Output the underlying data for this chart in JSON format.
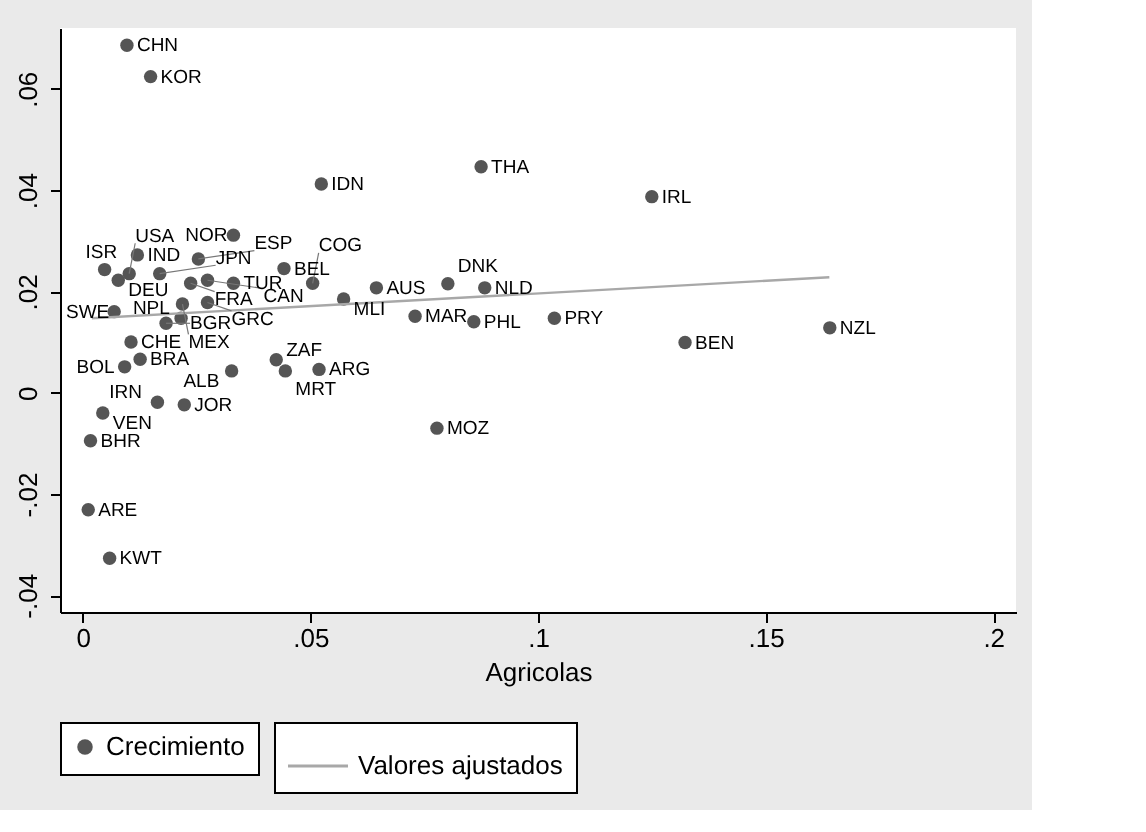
{
  "chart_data": {
    "type": "scatter",
    "xlabel": "Agricolas",
    "xlim": [
      -0.005,
      0.205
    ],
    "ylim": [
      -0.0433,
      0.072
    ],
    "xticks": [
      0,
      {
        "value": 0.05,
        "label": ".05"
      },
      {
        "value": 0.1,
        "label": ".1"
      },
      {
        "value": 0.15,
        "label": ".15"
      },
      {
        "value": 0.2,
        "label": ".2"
      }
    ],
    "yticks": [
      {
        "value": -0.04,
        "label": "-.04"
      },
      {
        "value": -0.02,
        "label": "-.02"
      },
      0,
      {
        "value": 0.02,
        "label": ".02"
      },
      {
        "value": 0.04,
        "label": ".04"
      },
      {
        "value": 0.06,
        "label": ".06"
      }
    ],
    "grid": false,
    "legend": "bottom",
    "series": [
      {
        "name": "Crecimiento",
        "color": "#555555",
        "marker": "circle",
        "x": [
          0.0097,
          0.0149,
          0.0524,
          0.0875,
          0.125,
          0.0331,
          0.0254,
          0.0048,
          0.012,
          0.0078,
          0.0102,
          0.0169,
          0.0237,
          0.0274,
          0.0331,
          0.0442,
          0.0505,
          0.0573,
          0.0645,
          0.0802,
          0.0883,
          0.0219,
          0.0274,
          0.0069,
          0.0183,
          0.0216,
          0.073,
          0.0859,
          0.1036,
          0.1323,
          0.1641,
          0.0106,
          0.0126,
          0.0092,
          0.0327,
          0.0425,
          0.0445,
          0.0519,
          0.0164,
          0.0223,
          0.0044,
          0.0017,
          0.0012,
          0.0059,
          0.0778
        ],
        "values": [
          0.0686,
          0.0624,
          0.0412,
          0.0446,
          0.0387,
          0.0311,
          0.0264,
          0.0243,
          0.0272,
          0.0222,
          0.0235,
          0.0235,
          0.0216,
          0.0222,
          0.0216,
          0.0245,
          0.0216,
          0.0185,
          0.0207,
          0.0215,
          0.0207,
          0.0175,
          0.0178,
          0.016,
          0.0137,
          0.0147,
          0.0151,
          0.014,
          0.0147,
          0.0099,
          0.0128,
          0.01,
          0.0066,
          0.0051,
          0.0043,
          0.0065,
          0.0043,
          0.0046,
          -0.0019,
          -0.0024,
          -0.004,
          -0.0095,
          -0.0231,
          -0.0327,
          -0.007
        ]
      },
      {
        "name": "Valores ajustados",
        "color": "#a8a8a8",
        "type": "line",
        "x": [
          0.002,
          0.164
        ],
        "values": [
          0.0147,
          0.0228
        ]
      }
    ],
    "annotations": [
      {
        "text": "CHN",
        "x": 0.0097,
        "y": 0.0686
      },
      {
        "text": "KOR",
        "x": 0.0149,
        "y": 0.0624
      },
      {
        "text": "IDN",
        "x": 0.0524,
        "y": 0.0412
      },
      {
        "text": "THA",
        "x": 0.0875,
        "y": 0.0446
      },
      {
        "text": "IRL",
        "x": 0.125,
        "y": 0.0387
      },
      {
        "text": "NOR",
        "x": 0.0331,
        "y": 0.0311
      },
      {
        "text": "ESP",
        "x": 0.0254,
        "y": 0.0264
      },
      {
        "text": "ISR",
        "x": 0.0048,
        "y": 0.0243
      },
      {
        "text": "IND",
        "x": 0.012,
        "y": 0.0272
      },
      {
        "text": "DEU",
        "x": 0.0078,
        "y": 0.0222
      },
      {
        "text": "USA",
        "x": 0.0102,
        "y": 0.0235
      },
      {
        "text": "JPN",
        "x": 0.0169,
        "y": 0.0235
      },
      {
        "text": "FRA",
        "x": 0.0237,
        "y": 0.0216
      },
      {
        "text": "CAN",
        "x": 0.0274,
        "y": 0.0222
      },
      {
        "text": "TUR",
        "x": 0.0331,
        "y": 0.0216
      },
      {
        "text": "BEL",
        "x": 0.0442,
        "y": 0.0245
      },
      {
        "text": "COG",
        "x": 0.0505,
        "y": 0.0216
      },
      {
        "text": "MLI",
        "x": 0.0573,
        "y": 0.0185
      },
      {
        "text": "AUS",
        "x": 0.0645,
        "y": 0.0207
      },
      {
        "text": "DNK",
        "x": 0.0802,
        "y": 0.0215
      },
      {
        "text": "NLD",
        "x": 0.0883,
        "y": 0.0207
      },
      {
        "text": "MEX",
        "x": 0.0219,
        "y": 0.0175
      },
      {
        "text": "GRC",
        "x": 0.0274,
        "y": 0.0178
      },
      {
        "text": "SWE",
        "x": 0.0069,
        "y": 0.016
      },
      {
        "text": "BGR",
        "x": 0.0183,
        "y": 0.0137
      },
      {
        "text": "NPL",
        "x": 0.0216,
        "y": 0.0147
      },
      {
        "text": "MAR",
        "x": 0.073,
        "y": 0.0151
      },
      {
        "text": "PHL",
        "x": 0.0859,
        "y": 0.014
      },
      {
        "text": "PRY",
        "x": 0.1036,
        "y": 0.0147
      },
      {
        "text": "BEN",
        "x": 0.1323,
        "y": 0.0099
      },
      {
        "text": "NZL",
        "x": 0.1641,
        "y": 0.0128
      },
      {
        "text": "CHE",
        "x": 0.0106,
        "y": 0.01
      },
      {
        "text": "BRA",
        "x": 0.0126,
        "y": 0.0066
      },
      {
        "text": "BOL",
        "x": 0.0092,
        "y": 0.0051
      },
      {
        "text": "ALB",
        "x": 0.0327,
        "y": 0.0043
      },
      {
        "text": "ZAF",
        "x": 0.0425,
        "y": 0.0065
      },
      {
        "text": "MRT",
        "x": 0.0445,
        "y": 0.0043
      },
      {
        "text": "ARG",
        "x": 0.0519,
        "y": 0.0046
      },
      {
        "text": "IRN",
        "x": 0.0164,
        "y": -0.0019
      },
      {
        "text": "JOR",
        "x": 0.0223,
        "y": -0.0024
      },
      {
        "text": "VEN",
        "x": 0.0044,
        "y": -0.004
      },
      {
        "text": "BHR",
        "x": 0.0017,
        "y": -0.0095
      },
      {
        "text": "ARE",
        "x": 0.0012,
        "y": -0.0231
      },
      {
        "text": "KWT",
        "x": 0.0059,
        "y": -0.0327
      },
      {
        "text": "MOZ",
        "x": 0.0778,
        "y": -0.007
      }
    ]
  }
}
